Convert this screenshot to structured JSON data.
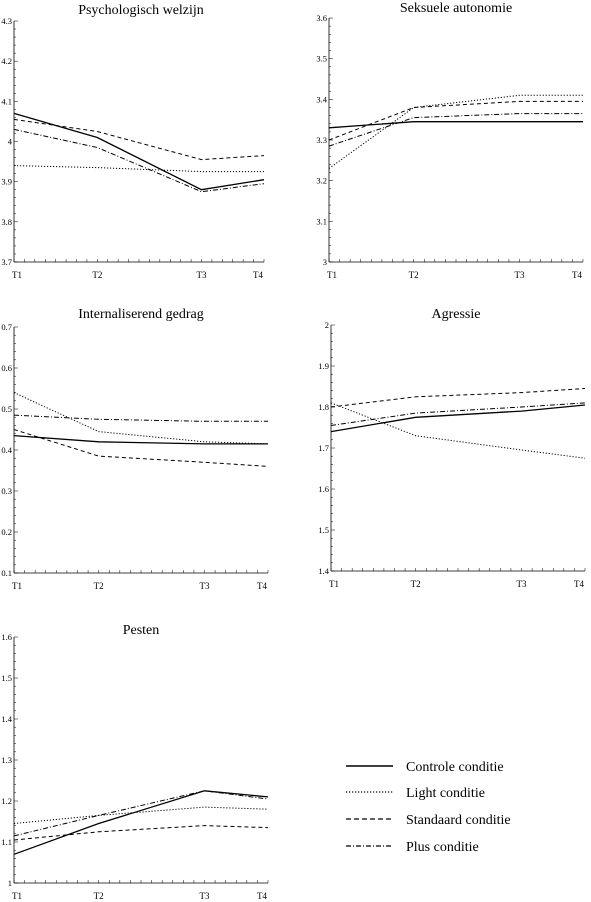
{
  "series_styles": [
    {
      "key": "controle",
      "name": "Controle conditie",
      "dash": "",
      "width": 1.3
    },
    {
      "key": "light",
      "name": "Light conditie",
      "dash": "1.2 1.8",
      "width": 1.0
    },
    {
      "key": "standaard",
      "name": "Standaard conditie",
      "dash": "4 3",
      "width": 1.0
    },
    {
      "key": "plus",
      "name": "Plus conditie",
      "dash": "5 2 1 2",
      "width": 1.0
    }
  ],
  "chart_data": [
    {
      "type": "line",
      "title": "Psychologisch welzijn",
      "x_labels": [
        "T1",
        "T2",
        "T3",
        "T4"
      ],
      "x": [
        0,
        4,
        9,
        12
      ],
      "ylim": [
        3.7,
        4.3
      ],
      "yticks": [
        3.7,
        3.8,
        3.9,
        4,
        4.1,
        4.2,
        4.3
      ],
      "ytick_labels": [
        "3.7",
        "3.8",
        "3.9",
        "4",
        "4.1",
        "4.2",
        "4.3"
      ],
      "series": [
        {
          "name": "Controle conditie",
          "values": [
            4.07,
            4.01,
            3.88,
            3.905
          ]
        },
        {
          "name": "Light conditie",
          "values": [
            3.94,
            3.935,
            3.925,
            3.925
          ]
        },
        {
          "name": "Standaard conditie",
          "values": [
            4.055,
            4.025,
            3.955,
            3.965
          ]
        },
        {
          "name": "Plus conditie",
          "values": [
            4.03,
            3.985,
            3.875,
            3.895
          ]
        }
      ]
    },
    {
      "type": "line",
      "title": "Seksuele autonomie",
      "x_labels": [
        "T1",
        "T2",
        "T3",
        "T4"
      ],
      "x": [
        0,
        4,
        9,
        12
      ],
      "ylim": [
        3,
        3.6
      ],
      "yticks": [
        3,
        3.1,
        3.2,
        3.3,
        3.4,
        3.5,
        3.6
      ],
      "ytick_labels": [
        "3",
        "3.1",
        "3.2",
        "3.3",
        "3.4",
        "3.5",
        "3.6"
      ],
      "series": [
        {
          "name": "Controle conditie",
          "values": [
            3.33,
            3.345,
            3.345,
            3.345
          ]
        },
        {
          "name": "Light conditie",
          "values": [
            3.23,
            3.38,
            3.41,
            3.41
          ]
        },
        {
          "name": "Standaard conditie",
          "values": [
            3.3,
            3.38,
            3.395,
            3.395
          ]
        },
        {
          "name": "Plus conditie",
          "values": [
            3.285,
            3.355,
            3.365,
            3.365
          ]
        }
      ]
    },
    {
      "type": "line",
      "title": "Internaliserend gedrag",
      "x_labels": [
        "T1",
        "T2",
        "T3",
        "T4"
      ],
      "x": [
        0,
        4,
        9,
        12
      ],
      "ylim": [
        0.1,
        0.7
      ],
      "yticks": [
        0.1,
        0.2,
        0.3,
        0.4,
        0.5,
        0.6,
        0.7
      ],
      "ytick_labels": [
        "0.1",
        "0.2",
        "0.3",
        "0.4",
        "0.5",
        "0.6",
        "0.7"
      ],
      "series": [
        {
          "name": "Controle conditie",
          "values": [
            0.435,
            0.42,
            0.415,
            0.415
          ]
        },
        {
          "name": "Light conditie",
          "values": [
            0.54,
            0.445,
            0.42,
            0.415
          ]
        },
        {
          "name": "Standaard conditie",
          "values": [
            0.45,
            0.385,
            0.37,
            0.36
          ]
        },
        {
          "name": "Plus conditie",
          "values": [
            0.485,
            0.475,
            0.47,
            0.47
          ]
        }
      ]
    },
    {
      "type": "line",
      "title": "Agressie",
      "x_labels": [
        "T1",
        "T2",
        "T3",
        "T4"
      ],
      "x": [
        0,
        4,
        9,
        12
      ],
      "ylim": [
        1.4,
        2
      ],
      "yticks": [
        1.4,
        1.5,
        1.6,
        1.7,
        1.8,
        1.9,
        2
      ],
      "ytick_labels": [
        "1.4",
        "1.5",
        "1.6",
        "1.7",
        "1.8",
        "1.9",
        "2"
      ],
      "series": [
        {
          "name": "Controle conditie",
          "values": [
            1.74,
            1.775,
            1.79,
            1.805
          ]
        },
        {
          "name": "Light conditie",
          "values": [
            1.81,
            1.73,
            1.695,
            1.675
          ]
        },
        {
          "name": "Standaard conditie",
          "values": [
            1.8,
            1.825,
            1.835,
            1.845
          ]
        },
        {
          "name": "Plus conditie",
          "values": [
            1.755,
            1.785,
            1.8,
            1.81
          ]
        }
      ]
    },
    {
      "type": "line",
      "title": "Pesten",
      "x_labels": [
        "T1",
        "T2",
        "T3",
        "T4"
      ],
      "x": [
        0,
        4,
        9,
        12
      ],
      "ylim": [
        1,
        1.6
      ],
      "yticks": [
        1,
        1.1,
        1.2,
        1.3,
        1.4,
        1.5,
        1.6
      ],
      "ytick_labels": [
        "1",
        "1.1",
        "1.2",
        "1.3",
        "1.4",
        "1.5",
        "1.6"
      ],
      "series": [
        {
          "name": "Controle conditie",
          "values": [
            1.07,
            1.145,
            1.225,
            1.21
          ]
        },
        {
          "name": "Light conditie",
          "values": [
            1.145,
            1.165,
            1.185,
            1.18
          ]
        },
        {
          "name": "Standaard conditie",
          "values": [
            1.105,
            1.125,
            1.14,
            1.135
          ]
        },
        {
          "name": "Plus conditie",
          "values": [
            1.115,
            1.165,
            1.225,
            1.205
          ]
        }
      ]
    }
  ]
}
